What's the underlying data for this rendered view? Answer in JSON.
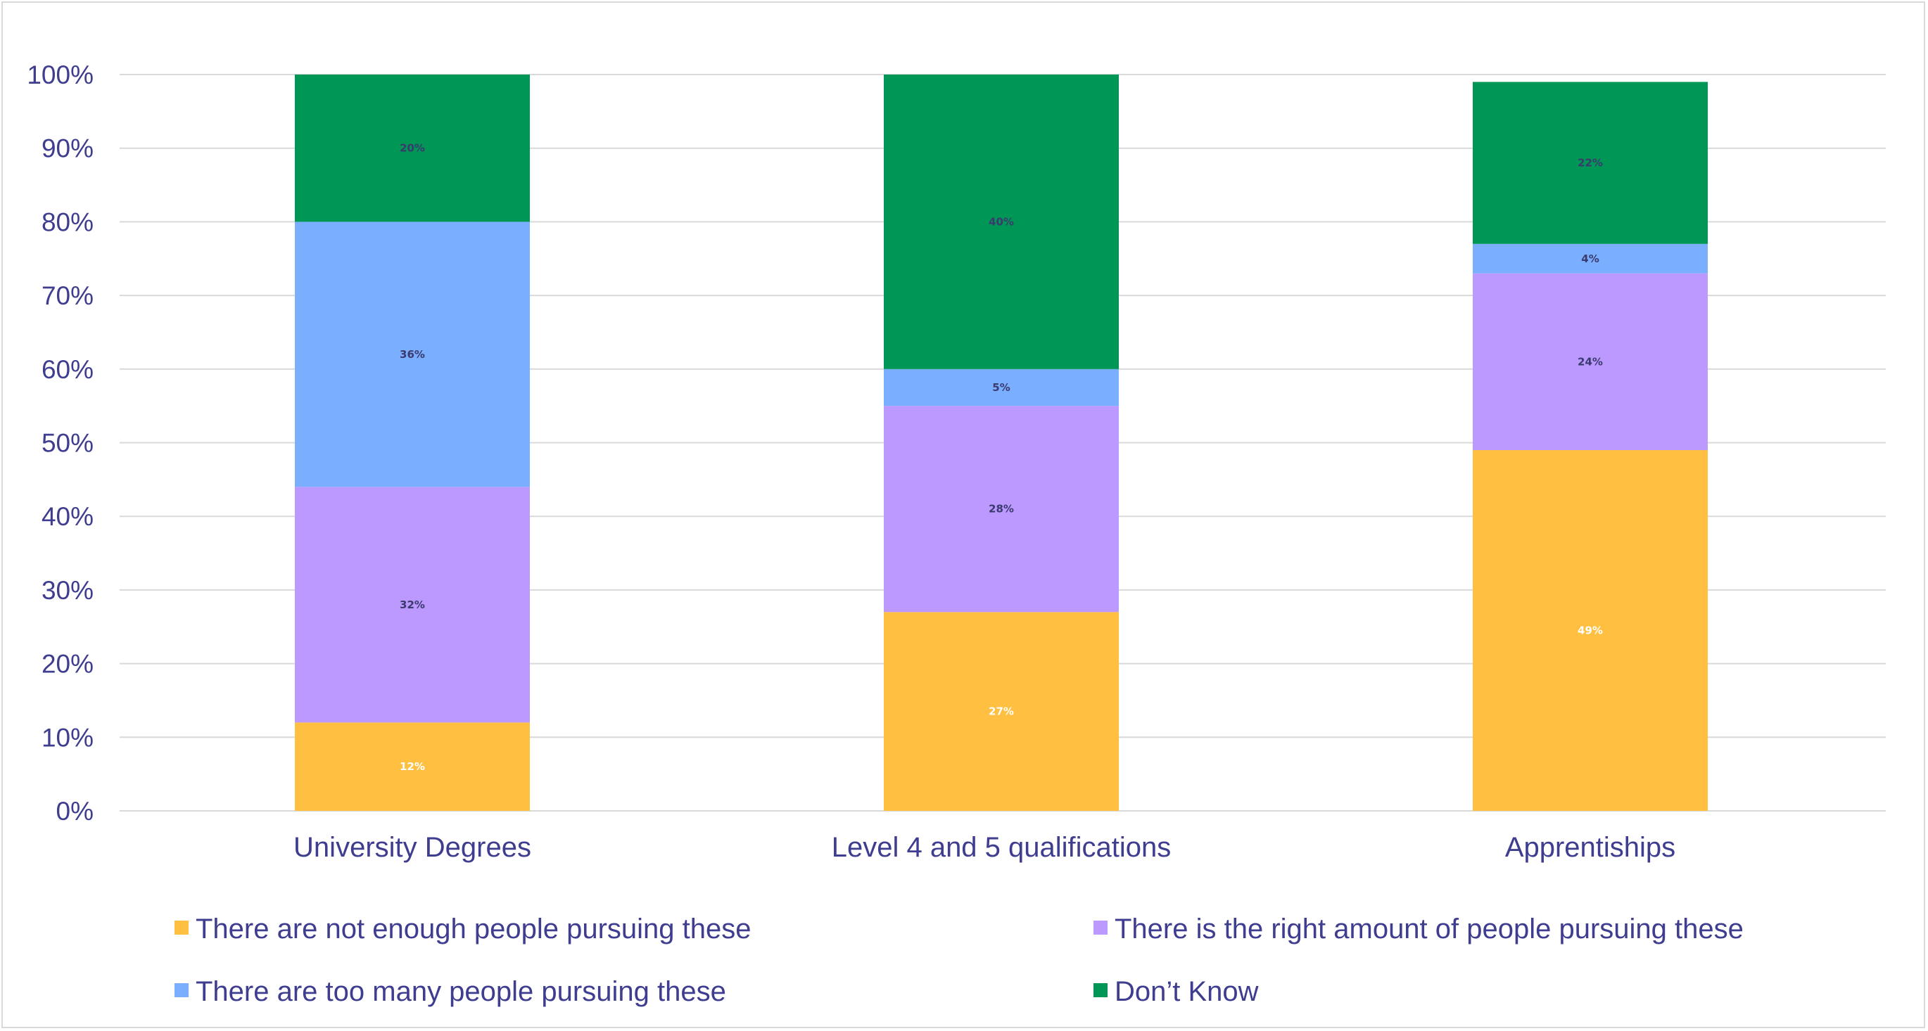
{
  "chart_data": {
    "type": "bar",
    "stacked": true,
    "categories": [
      "University Degrees",
      "Level 4 and 5 qualifications",
      "Apprentiships"
    ],
    "series": [
      {
        "name": "There are not enough people pursuing these",
        "color": "#ffbf40",
        "label_color": "#ffffff",
        "values": [
          12,
          27,
          49
        ],
        "labels": [
          "12%",
          "27%",
          "49%"
        ]
      },
      {
        "name": "There is the right amount of people pursuing these",
        "color": "#bb99ff",
        "label_color": "#3b3a6e",
        "values": [
          32,
          28,
          24
        ],
        "labels": [
          "32%",
          "28%",
          "24%"
        ]
      },
      {
        "name": "There are too many people pursuing these",
        "color": "#7aaeff",
        "label_color": "#3b3a6e",
        "values": [
          36,
          5,
          4
        ],
        "labels": [
          "36%",
          "5%",
          "4%"
        ]
      },
      {
        "name": "Don’t Know",
        "color": "#009655",
        "label_color": "#3b3a6e",
        "values": [
          20,
          40,
          22
        ],
        "labels": [
          "20%",
          "40%",
          "22%"
        ]
      }
    ],
    "yticks": [
      "0%",
      "10%",
      "20%",
      "30%",
      "40%",
      "50%",
      "60%",
      "70%",
      "80%",
      "90%",
      "100%"
    ],
    "ylim": [
      0,
      100
    ],
    "grid": true,
    "gridline_color": "#d9d9d9",
    "legend_position": "bottom",
    "title": "",
    "xlabel": "",
    "ylabel": ""
  }
}
